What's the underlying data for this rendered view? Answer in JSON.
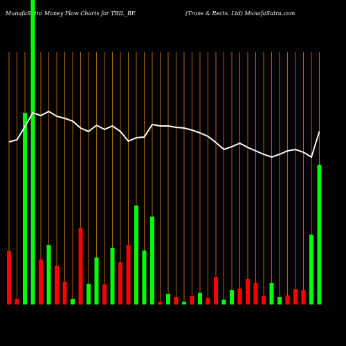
{
  "chart_data": {
    "type": "bar",
    "title": "MunafaSutra  Money Flow  Charts for TRIL_BE",
    "subtitle": "(Trans & Rects. Ltd) MunafaSutra.com",
    "values": [
      77,
      8,
      277,
      440,
      65,
      86,
      56,
      33,
      8,
      111,
      30,
      68,
      29,
      82,
      61,
      86,
      143,
      78,
      127,
      4,
      15,
      11,
      4,
      12,
      17,
      9,
      40,
      7,
      21,
      23,
      37,
      31,
      12,
      31,
      11,
      13,
      22,
      21,
      101,
      202
    ],
    "colors": [
      "#ff0000",
      "#ff0000",
      "#00ff00",
      "#00ff00",
      "#ff0000",
      "#00ff00",
      "#ff0000",
      "#ff0000",
      "#00ff00",
      "#ff0000",
      "#00ff00",
      "#00ff00",
      "#ff0000",
      "#00ff00",
      "#ff0000",
      "#ff0000",
      "#00ff00",
      "#00ff00",
      "#00ff00",
      "#ff0000",
      "#00ff00",
      "#ff0000",
      "#00ff00",
      "#ff0000",
      "#00ff00",
      "#ff0000",
      "#ff0000",
      "#00ff00",
      "#00ff00",
      "#ff0000",
      "#ff0000",
      "#ff0000",
      "#ff0000",
      "#00ff00",
      "#00ff00",
      "#ff0000",
      "#ff0000",
      "#ff0000",
      "#00ff00",
      "#00ff00"
    ],
    "line": {
      "color": "#ffffff",
      "values": [
        235,
        238,
        257,
        277,
        273,
        279,
        272,
        269,
        265,
        255,
        250,
        259,
        253,
        258,
        250,
        236,
        241,
        242,
        260,
        258,
        258,
        256,
        255,
        252,
        248,
        243,
        234,
        224,
        228,
        233,
        227,
        222,
        217,
        213,
        217,
        222,
        224,
        220,
        213,
        250
      ]
    },
    "ylim": [
      0,
      440
    ]
  }
}
